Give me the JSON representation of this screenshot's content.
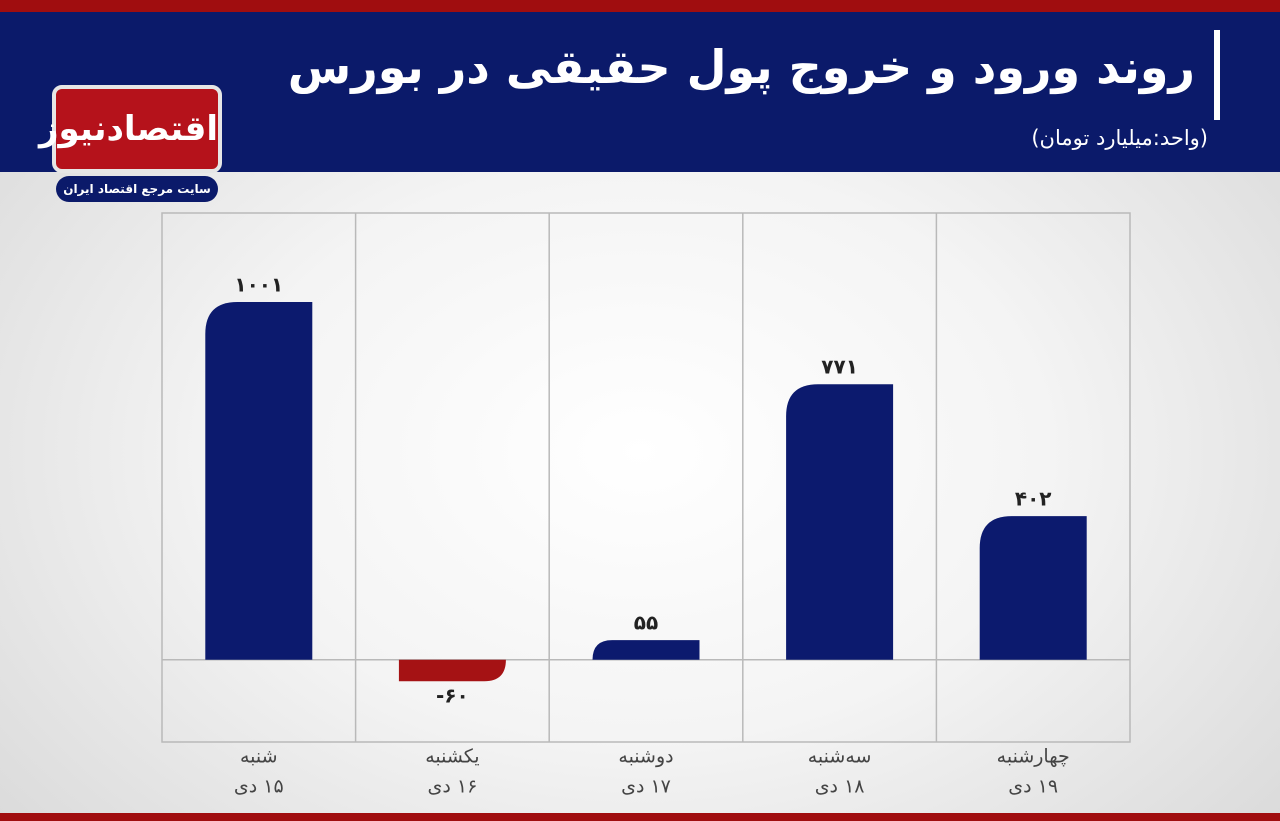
{
  "header": {
    "title": "روند ورود و خروج پول حقیقی در بورس",
    "subtitle": "(واحد:میلیارد تومان)"
  },
  "logo": {
    "name": "اقتصادنیوز",
    "tagline": "سایت مرجع اقتصاد ایران"
  },
  "chart_data": {
    "type": "bar",
    "categories": [
      [
        "شنبه",
        "۱۵ دی"
      ],
      [
        "یکشنبه",
        "۱۶ دی"
      ],
      [
        "دوشنبه",
        "۱۷ دی"
      ],
      [
        "سه‌شنبه",
        "۱۸ دی"
      ],
      [
        "چهارشنبه",
        "۱۹ دی"
      ]
    ],
    "values": [
      1001,
      -60,
      55,
      771,
      402
    ],
    "value_labels": [
      "۱۰۰۱",
      "-۶۰",
      "۵۵",
      "۷۷۱",
      "۴۰۲"
    ],
    "color": "#0c1a6e",
    "negative_color": "#a51214",
    "ylim": [
      -230,
      1250
    ]
  }
}
